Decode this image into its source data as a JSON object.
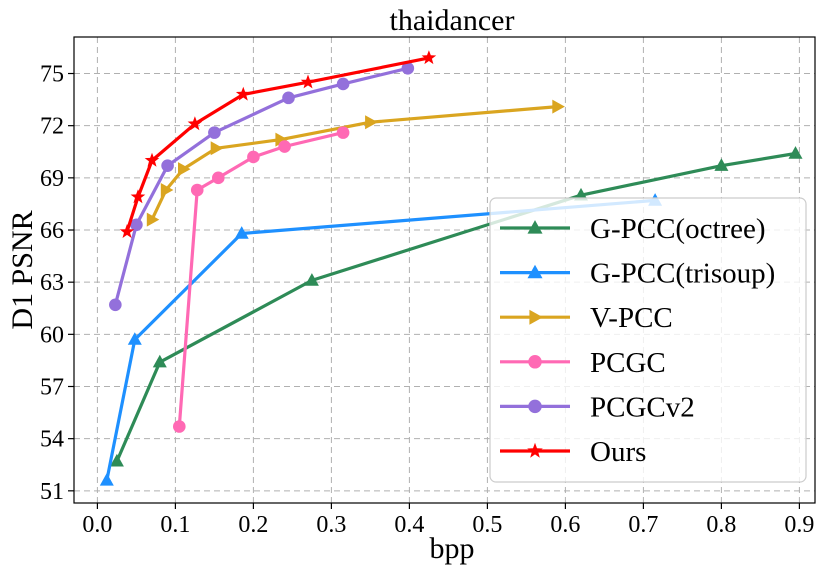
{
  "chart_data": {
    "type": "line",
    "title": "thaidancer",
    "xlabel": "bpp",
    "ylabel": "D1 PSNR",
    "xlim": [
      -0.03,
      0.92
    ],
    "ylim": [
      50.3,
      77.1
    ],
    "xticks": [
      0.0,
      0.1,
      0.2,
      0.3,
      0.4,
      0.5,
      0.6,
      0.7,
      0.8,
      0.9
    ],
    "xtick_labels": [
      "0.0",
      "0.1",
      "0.2",
      "0.3",
      "0.4",
      "0.5",
      "0.6",
      "0.7",
      "0.8",
      "0.9"
    ],
    "yticks": [
      51,
      54,
      57,
      60,
      63,
      66,
      69,
      72,
      75
    ],
    "ytick_labels": [
      "51",
      "54",
      "57",
      "60",
      "63",
      "66",
      "69",
      "72",
      "75"
    ],
    "grid": true,
    "legend_position": "lower-right",
    "series": [
      {
        "name": "G-PCC(octree)",
        "color": "#2e8b57",
        "marker": "triangle-up",
        "x": [
          0.025,
          0.08,
          0.275,
          0.62,
          0.8,
          0.895
        ],
        "y": [
          52.7,
          58.4,
          63.1,
          68.0,
          69.7,
          70.4
        ]
      },
      {
        "name": "G-PCC(trisoup)",
        "color": "#1e90ff",
        "marker": "triangle-up",
        "x": [
          0.012,
          0.048,
          0.185,
          0.715
        ],
        "y": [
          51.6,
          59.7,
          65.8,
          67.7
        ]
      },
      {
        "name": "V-PCC",
        "color": "#daa520",
        "marker": "triangle-right",
        "x": [
          0.07,
          0.088,
          0.11,
          0.152,
          0.235,
          0.35,
          0.59
        ],
        "y": [
          66.6,
          68.3,
          69.5,
          70.7,
          71.2,
          72.2,
          73.1
        ]
      },
      {
        "name": "PCGC",
        "color": "#ff69b4",
        "marker": "circle",
        "x": [
          0.105,
          0.128,
          0.155,
          0.2,
          0.24,
          0.315
        ],
        "y": [
          54.7,
          68.3,
          69.0,
          70.2,
          70.8,
          71.6
        ]
      },
      {
        "name": "PCGCv2",
        "color": "#9370db",
        "marker": "circle",
        "x": [
          0.023,
          0.05,
          0.09,
          0.15,
          0.245,
          0.315,
          0.398
        ],
        "y": [
          61.7,
          66.3,
          69.7,
          71.6,
          73.6,
          74.4,
          75.3
        ]
      },
      {
        "name": "Ours",
        "color": "#ff0000",
        "marker": "star",
        "x": [
          0.038,
          0.052,
          0.07,
          0.125,
          0.187,
          0.27,
          0.425
        ],
        "y": [
          65.9,
          67.9,
          70.0,
          72.1,
          73.8,
          74.5,
          75.9
        ]
      }
    ]
  }
}
